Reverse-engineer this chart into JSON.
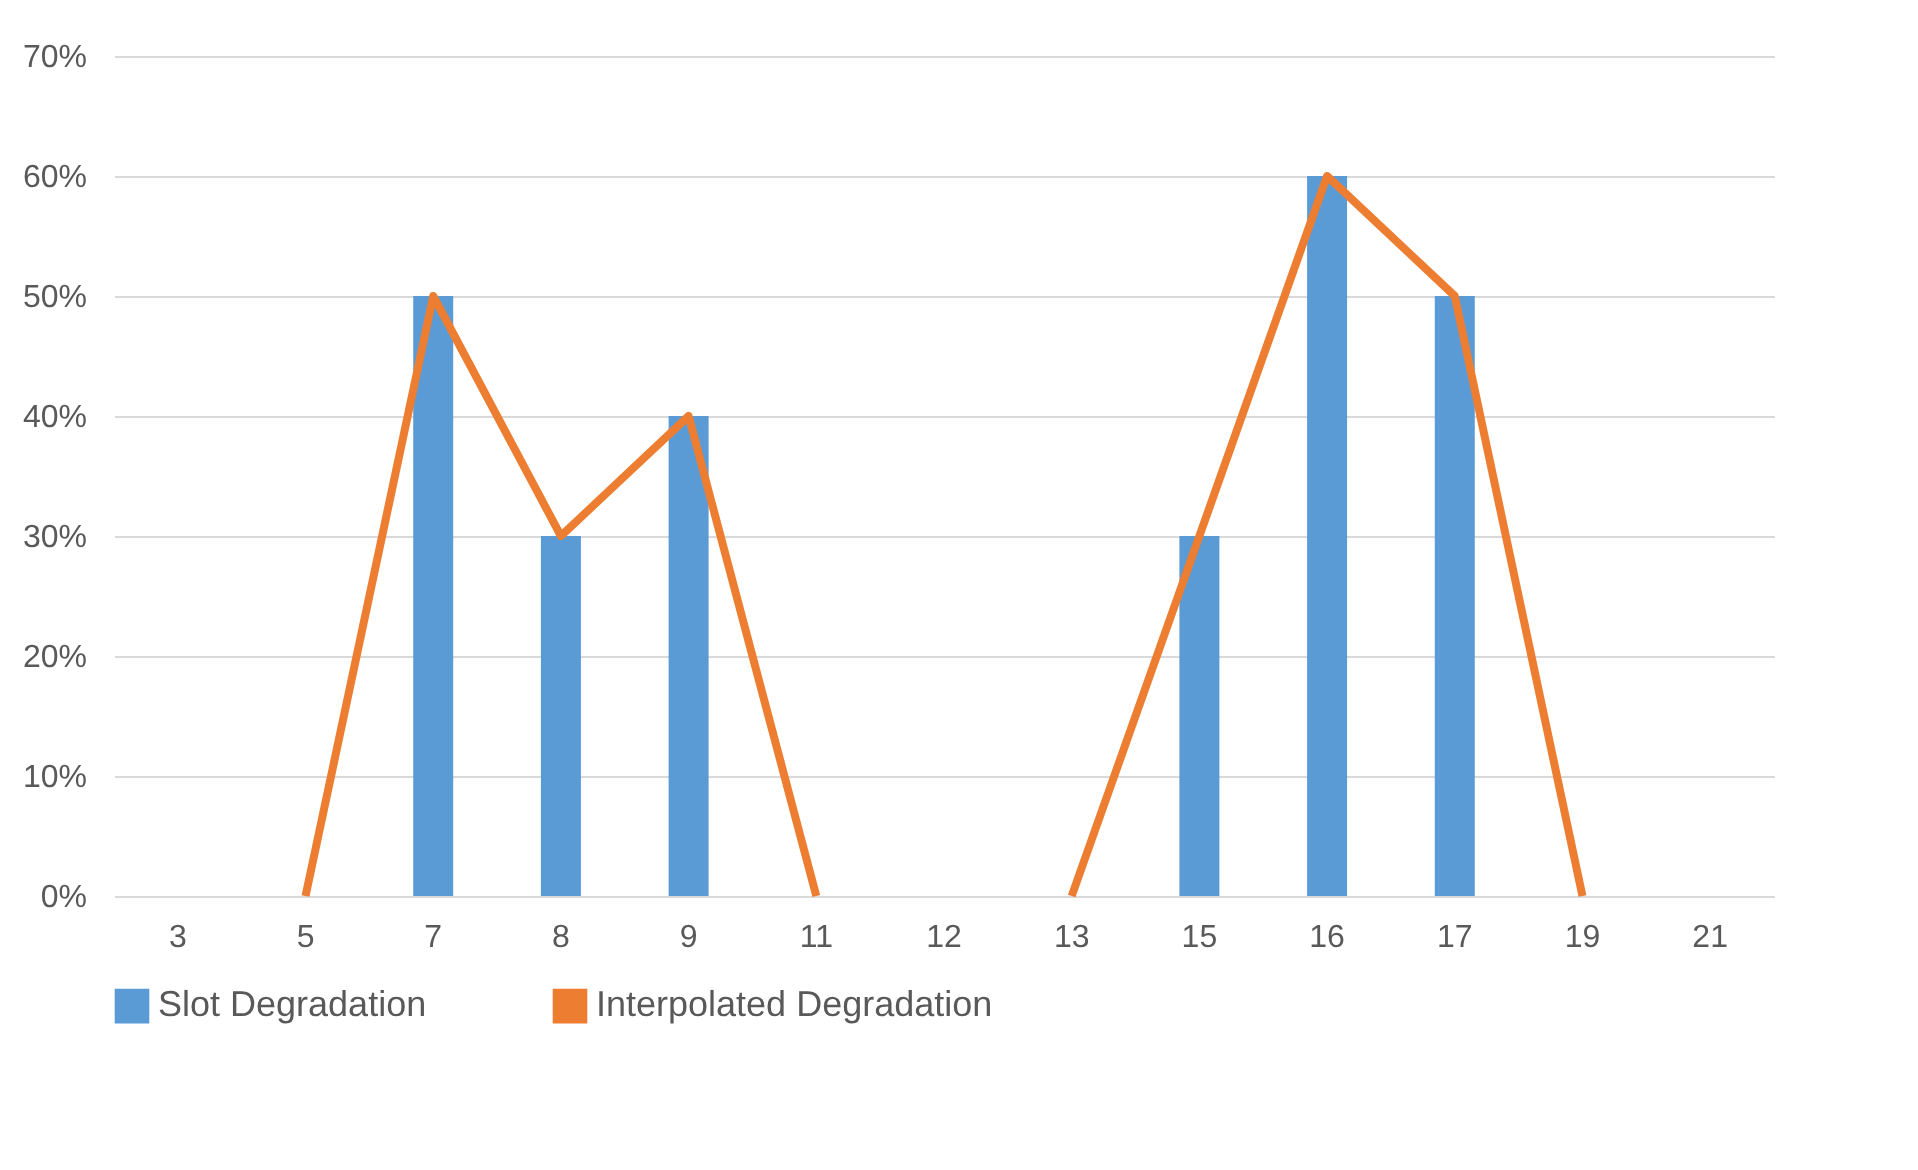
{
  "chart_data": {
    "type": "bar",
    "categories": [
      "3",
      "5",
      "7",
      "8",
      "9",
      "11",
      "12",
      "13",
      "15",
      "16",
      "17",
      "19",
      "21"
    ],
    "series": [
      {
        "name": "Slot Degradation",
        "color": "#5b9bd5",
        "values": [
          null,
          null,
          50,
          30,
          40,
          null,
          null,
          null,
          30,
          60,
          50,
          null,
          null
        ]
      },
      {
        "name": "Interpolated Degradation",
        "type": "line",
        "color": "#ed7d31",
        "values": [
          null,
          0,
          50,
          30,
          40,
          0,
          null,
          0,
          30,
          60,
          50,
          0,
          null
        ]
      }
    ],
    "ylim": [
      0,
      70
    ],
    "yticks": [
      {
        "value": 0,
        "label": "0%"
      },
      {
        "value": 10,
        "label": "10%"
      },
      {
        "value": 20,
        "label": "20%"
      },
      {
        "value": 30,
        "label": "30%"
      },
      {
        "value": 40,
        "label": "40%"
      },
      {
        "value": 50,
        "label": "50%"
      },
      {
        "value": 60,
        "label": "60%"
      },
      {
        "value": 70,
        "label": "70%"
      }
    ],
    "grid": "y",
    "legend": "bottom",
    "marker": "none",
    "line_style": "solid"
  }
}
